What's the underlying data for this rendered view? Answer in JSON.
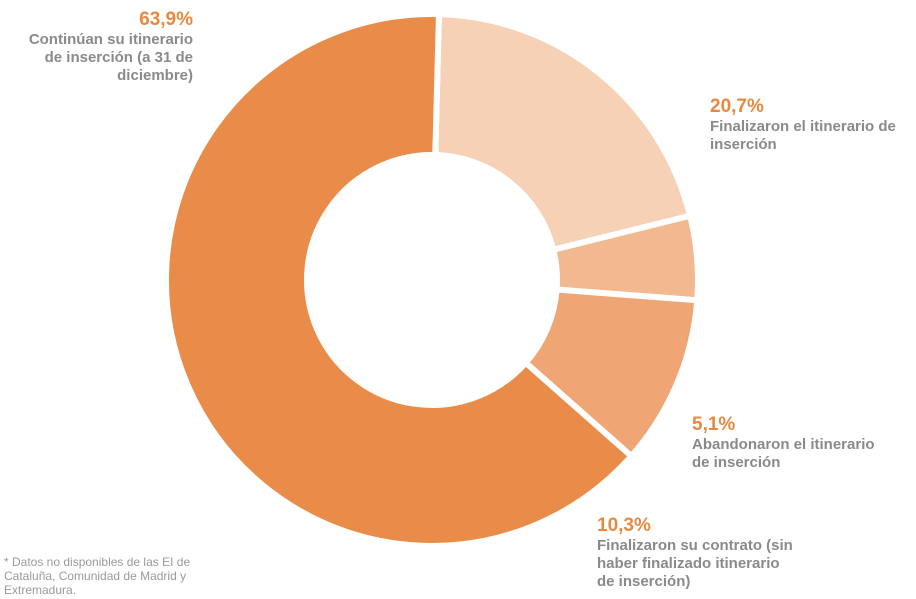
{
  "chart_data": {
    "type": "pie",
    "variant": "donut",
    "title": "",
    "slices": [
      {
        "label": "Continúan su itinerario\nde inserción (a 31 de\ndiciembre)",
        "value_label": "63,9%",
        "value": 63.9,
        "color": "#ea8c49"
      },
      {
        "label": "Finalizaron el itinerario de\ninserción",
        "value_label": "20,7%",
        "value": 20.7,
        "color": "#f6d1b6"
      },
      {
        "label": "Abandonaron el itinerario\nde inserción",
        "value_label": "5,1%",
        "value": 5.1,
        "color": "#f2b88f"
      },
      {
        "label": "Finalizaron su contrato (sin\nhaber finalizado itinerario\nde inserción)",
        "value_label": "10,3%",
        "value": 10.3,
        "color": "#efa674"
      }
    ]
  },
  "footnote": "* Datos no disponibles de las EI de\nCataluña, Comunidad de Madrid y\nExtremadura.",
  "colors": {
    "accent": "#e8893f",
    "label_text": "#8a8a8a"
  }
}
